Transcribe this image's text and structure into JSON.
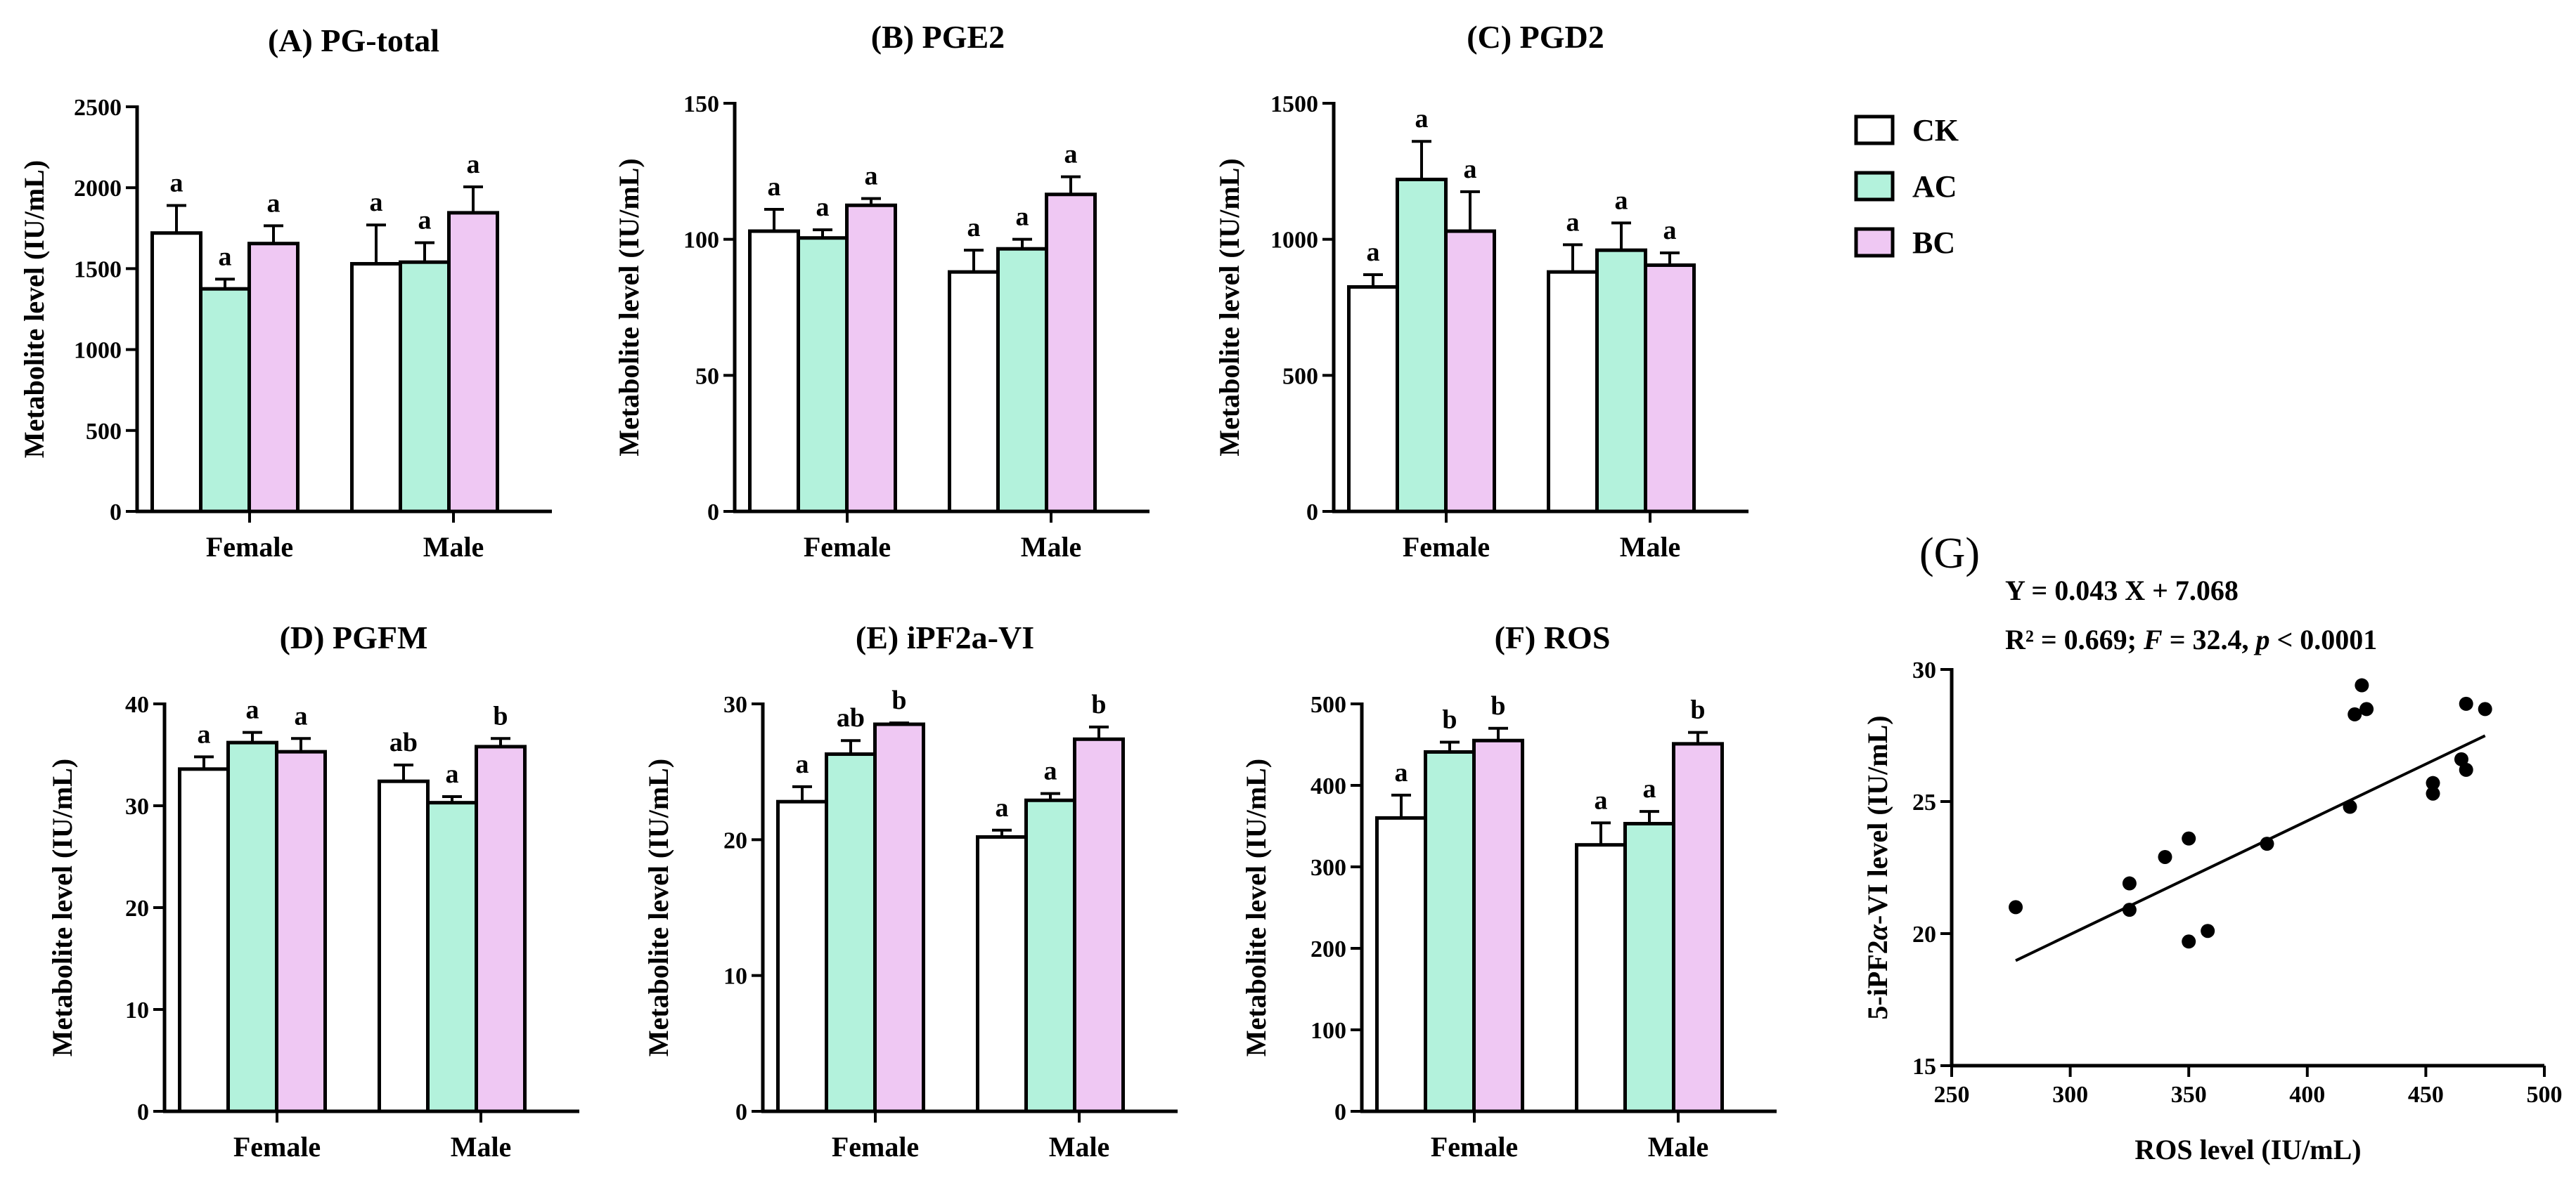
{
  "legend": {
    "items": [
      {
        "label": "CK",
        "color": "#ffffff"
      },
      {
        "label": "AC",
        "color": "#b3f2dc"
      },
      {
        "label": "BC",
        "color": "#efc8f3"
      }
    ]
  },
  "chart_data": [
    {
      "type": "bar",
      "id": "A",
      "title": "(A) PG-total",
      "ylabel": "Metabolite level (IU/mL)",
      "ylim": [
        0,
        2500
      ],
      "yticks": [
        0,
        500,
        1000,
        1500,
        2000,
        2500
      ],
      "categories": [
        "Female",
        "Male"
      ],
      "series": [
        {
          "name": "CK",
          "values": [
            1720,
            1530
          ],
          "errors": [
            170,
            240
          ],
          "letters": [
            "a",
            "a"
          ]
        },
        {
          "name": "AC",
          "values": [
            1375,
            1540
          ],
          "errors": [
            60,
            120
          ],
          "letters": [
            "a",
            "a"
          ]
        },
        {
          "name": "BC",
          "values": [
            1655,
            1845
          ],
          "errors": [
            110,
            160
          ],
          "letters": [
            "a",
            "a"
          ]
        }
      ]
    },
    {
      "type": "bar",
      "id": "B",
      "title": "(B) PGE2",
      "ylabel": "Metabolite level (IU/mL)",
      "ylim": [
        0,
        150
      ],
      "yticks": [
        0,
        50,
        100,
        150
      ],
      "categories": [
        "Female",
        "Male"
      ],
      "series": [
        {
          "name": "CK",
          "values": [
            103,
            88
          ],
          "errors": [
            8,
            8
          ],
          "letters": [
            "a",
            "a"
          ]
        },
        {
          "name": "AC",
          "values": [
            100.5,
            96.5
          ],
          "errors": [
            3,
            3.5
          ],
          "letters": [
            "a",
            "a"
          ]
        },
        {
          "name": "BC",
          "values": [
            112.5,
            116.5
          ],
          "errors": [
            2.5,
            6.5
          ],
          "letters": [
            "a",
            "a"
          ]
        }
      ]
    },
    {
      "type": "bar",
      "id": "C",
      "title": "(C) PGD2",
      "ylabel": "Metabolite level (IU/mL)",
      "ylim": [
        0,
        1500
      ],
      "yticks": [
        0,
        500,
        1000,
        1500
      ],
      "categories": [
        "Female",
        "Male"
      ],
      "series": [
        {
          "name": "CK",
          "values": [
            825,
            880
          ],
          "errors": [
            45,
            100
          ],
          "letters": [
            "a",
            "a"
          ]
        },
        {
          "name": "AC",
          "values": [
            1220,
            960
          ],
          "errors": [
            140,
            100
          ],
          "letters": [
            "a",
            "a"
          ]
        },
        {
          "name": "BC",
          "values": [
            1030,
            905
          ],
          "errors": [
            145,
            45
          ],
          "letters": [
            "a",
            "a"
          ]
        }
      ]
    },
    {
      "type": "bar",
      "id": "D",
      "title": "(D) PGFM",
      "ylabel": "Metabolite level (IU/mL)",
      "ylim": [
        0,
        40
      ],
      "yticks": [
        0,
        10,
        20,
        30,
        40
      ],
      "categories": [
        "Female",
        "Male"
      ],
      "series": [
        {
          "name": "CK",
          "values": [
            33.6,
            32.4
          ],
          "errors": [
            1.2,
            1.6
          ],
          "letters": [
            "a",
            "ab"
          ]
        },
        {
          "name": "AC",
          "values": [
            36.2,
            30.3
          ],
          "errors": [
            1.0,
            0.6
          ],
          "letters": [
            "a",
            "a"
          ]
        },
        {
          "name": "BC",
          "values": [
            35.3,
            35.8
          ],
          "errors": [
            1.3,
            0.8
          ],
          "letters": [
            "a",
            "b"
          ]
        }
      ]
    },
    {
      "type": "bar",
      "id": "E",
      "title": "(E) iPF2a-VI",
      "ylabel": "Metabolite level (IU/mL)",
      "ylim": [
        0,
        30
      ],
      "yticks": [
        0,
        10,
        20,
        30
      ],
      "categories": [
        "Female",
        "Male"
      ],
      "series": [
        {
          "name": "CK",
          "values": [
            22.8,
            20.2
          ],
          "errors": [
            1.1,
            0.5
          ],
          "letters": [
            "a",
            "a"
          ]
        },
        {
          "name": "AC",
          "values": [
            26.3,
            22.9
          ],
          "errors": [
            1.0,
            0.5
          ],
          "letters": [
            "ab",
            "a"
          ]
        },
        {
          "name": "BC",
          "values": [
            28.5,
            27.4
          ],
          "errors": [
            0.1,
            0.9
          ],
          "letters": [
            "b",
            "b"
          ]
        }
      ]
    },
    {
      "type": "bar",
      "id": "F",
      "title": "(F) ROS",
      "ylabel": "Metabolite level (IU/mL)",
      "ylim": [
        0,
        500
      ],
      "yticks": [
        0,
        100,
        200,
        300,
        400,
        500
      ],
      "categories": [
        "Female",
        "Male"
      ],
      "series": [
        {
          "name": "CK",
          "values": [
            360,
            327
          ],
          "errors": [
            28,
            27
          ],
          "letters": [
            "a",
            "a"
          ]
        },
        {
          "name": "AC",
          "values": [
            441,
            353
          ],
          "errors": [
            12,
            15
          ],
          "letters": [
            "b",
            "a"
          ]
        },
        {
          "name": "BC",
          "values": [
            455,
            451
          ],
          "errors": [
            15,
            14
          ],
          "letters": [
            "b",
            "b"
          ]
        }
      ]
    },
    {
      "type": "scatter",
      "id": "G",
      "title": "(G)",
      "equation": "Y = 0.043 X + 7.068",
      "stats_r2": "R² = 0.669; ",
      "stats_f": "F",
      "stats_fval": " = 32.4, ",
      "stats_p": "p",
      "stats_pval": " < 0.0001",
      "xlabel": "ROS level (IU/mL)",
      "ylabel_prefix": "5-iPF2",
      "ylabel_alpha": "α",
      "ylabel_suffix": "-VI level (IU/mL)",
      "xlim": [
        250,
        500
      ],
      "ylim": [
        15,
        30
      ],
      "xticks": [
        250,
        300,
        350,
        400,
        450,
        500
      ],
      "yticks": [
        15,
        20,
        25,
        30
      ],
      "points": [
        [
          277,
          21.0
        ],
        [
          325,
          21.9
        ],
        [
          325,
          20.9
        ],
        [
          340,
          22.9
        ],
        [
          350,
          23.6
        ],
        [
          350,
          19.7
        ],
        [
          358,
          20.1
        ],
        [
          383,
          23.4
        ],
        [
          418,
          24.8
        ],
        [
          420,
          28.3
        ],
        [
          423,
          29.4
        ],
        [
          425,
          28.5
        ],
        [
          453,
          25.7
        ],
        [
          453,
          25.3
        ],
        [
          465,
          26.6
        ],
        [
          467,
          28.7
        ],
        [
          467,
          26.2
        ],
        [
          475,
          28.5
        ]
      ],
      "fit": {
        "slope": 0.043,
        "intercept": 7.068,
        "x_range": [
          277,
          475
        ]
      }
    }
  ]
}
